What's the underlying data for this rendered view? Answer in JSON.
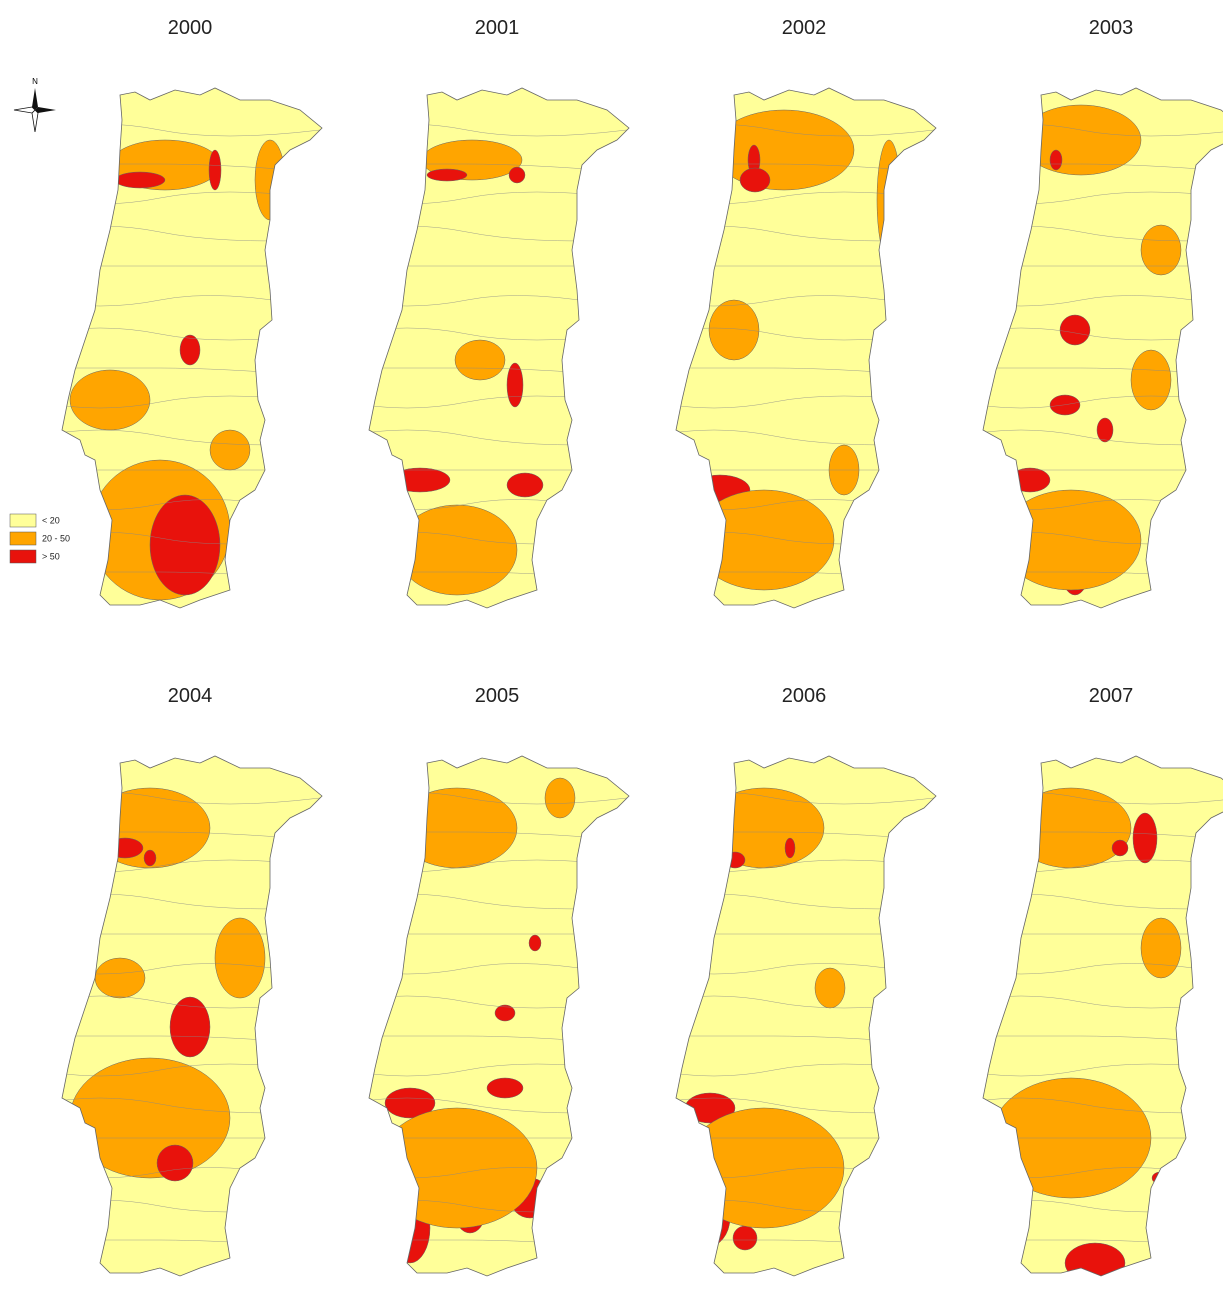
{
  "maps": [
    {
      "title": "2000"
    },
    {
      "title": "2001"
    },
    {
      "title": "2002"
    },
    {
      "title": "2003"
    },
    {
      "title": "2004"
    },
    {
      "title": "2005"
    },
    {
      "title": "2006"
    },
    {
      "title": "2007"
    }
  ],
  "legend": {
    "items": [
      {
        "label": "< 20",
        "color": "#ffff99"
      },
      {
        "label": "20 - 50",
        "color": "#ffa500"
      },
      {
        "label": "> 50",
        "color": "#e8120c"
      }
    ]
  },
  "compass": {
    "label": "N"
  }
}
